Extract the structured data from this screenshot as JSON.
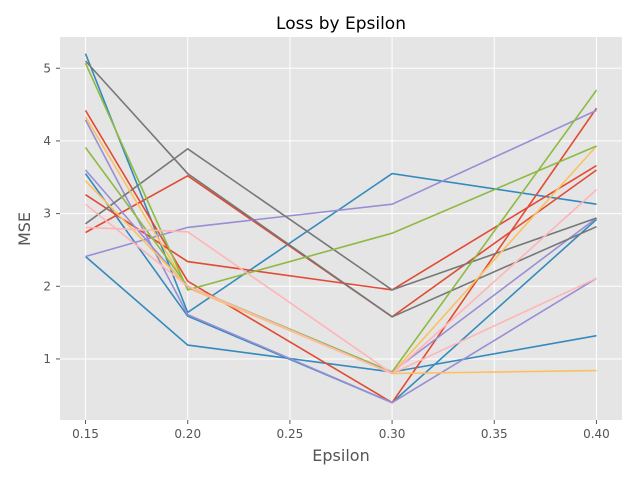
{
  "chart_data": {
    "type": "line",
    "title": "Loss by Epsilon",
    "xlabel": "Epsilon",
    "ylabel": "MSE",
    "x": [
      0.15,
      0.2,
      0.3,
      0.4
    ],
    "xlim": [
      0.1375,
      0.4125
    ],
    "ylim": [
      0.16,
      5.43
    ],
    "xticks": [
      0.15,
      0.2,
      0.25,
      0.3,
      0.35,
      0.4
    ],
    "xtick_labels": [
      "0.15",
      "0.20",
      "0.25",
      "0.30",
      "0.35",
      "0.40"
    ],
    "yticks": [
      1,
      2,
      3,
      4,
      5
    ],
    "ytick_labels": [
      "1",
      "2",
      "3",
      "4",
      "5"
    ],
    "grid": true,
    "style": "ggplot",
    "series": [
      {
        "color": "#348ABD",
        "values": [
          5.2,
          1.64,
          3.55,
          3.13
        ]
      },
      {
        "color": "#348ABD",
        "values": [
          2.41,
          1.19,
          0.82,
          1.32
        ]
      },
      {
        "color": "#348ABD",
        "values": [
          3.55,
          1.59,
          0.4,
          2.92
        ]
      },
      {
        "color": "#E24A33",
        "values": [
          4.42,
          2.07,
          0.4,
          4.45
        ]
      },
      {
        "color": "#E24A33",
        "values": [
          2.74,
          3.52,
          1.58,
          3.6
        ]
      },
      {
        "color": "#E24A33",
        "values": [
          3.26,
          2.34,
          1.95,
          3.66
        ]
      },
      {
        "color": "#988ED5",
        "values": [
          4.29,
          1.61,
          0.4,
          2.11
        ]
      },
      {
        "color": "#988ED5",
        "values": [
          2.41,
          2.81,
          3.13,
          4.42
        ]
      },
      {
        "color": "#988ED5",
        "values": [
          3.6,
          1.98,
          0.82,
          2.94
        ]
      },
      {
        "color": "#777777",
        "values": [
          5.1,
          3.55,
          1.58,
          2.82
        ]
      },
      {
        "color": "#777777",
        "values": [
          2.86,
          3.89,
          1.95,
          2.94
        ]
      },
      {
        "color": "#FBC15E",
        "values": [
          4.33,
          1.98,
          0.8,
          0.84
        ]
      },
      {
        "color": "#FBC15E",
        "values": [
          3.45,
          2.0,
          0.8,
          3.93
        ]
      },
      {
        "color": "#8EBA42",
        "values": [
          5.07,
          1.95,
          2.73,
          3.93
        ]
      },
      {
        "color": "#8EBA42",
        "values": [
          3.91,
          2.0,
          0.82,
          4.7
        ]
      },
      {
        "color": "#FFB5B8",
        "values": [
          2.81,
          2.75,
          0.8,
          3.33
        ]
      },
      {
        "color": "#FFB5B8",
        "values": [
          3.13,
          2.0,
          0.8,
          2.11
        ]
      }
    ]
  }
}
